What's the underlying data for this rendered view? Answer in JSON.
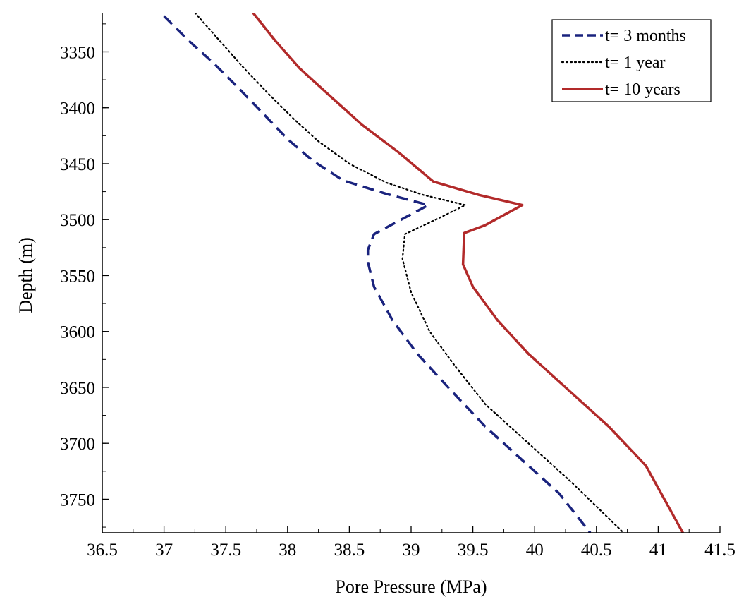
{
  "chart_data": {
    "type": "line",
    "title": "",
    "xlabel": "Pore Pressure (MPa)",
    "ylabel": "Depth (m)",
    "xlim": [
      36.5,
      41.5
    ],
    "ylim": [
      3315,
      3780
    ],
    "y_inverted": true,
    "grid": false,
    "legend_position": "top-right",
    "x_ticks": [
      "36.5",
      "37",
      "37.5",
      "38",
      "38.5",
      "39",
      "39.5",
      "40",
      "40.5",
      "41",
      "41.5"
    ],
    "y_ticks": [
      "3350",
      "3400",
      "3450",
      "3500",
      "3550",
      "3600",
      "3650",
      "3700",
      "3750"
    ],
    "series": [
      {
        "name": "t= 3 months",
        "color": "#1a237e",
        "style": "dashed",
        "points": [
          [
            37.0,
            3318
          ],
          [
            37.2,
            3340
          ],
          [
            37.4,
            3360
          ],
          [
            37.6,
            3382
          ],
          [
            37.8,
            3405
          ],
          [
            38.0,
            3428
          ],
          [
            38.2,
            3447
          ],
          [
            38.45,
            3465
          ],
          [
            38.8,
            3477
          ],
          [
            39.14,
            3487
          ],
          [
            38.7,
            3513
          ],
          [
            38.65,
            3527
          ],
          [
            38.65,
            3538
          ],
          [
            38.7,
            3560
          ],
          [
            38.85,
            3590
          ],
          [
            39.05,
            3620
          ],
          [
            39.3,
            3650
          ],
          [
            39.6,
            3685
          ],
          [
            39.95,
            3720
          ],
          [
            40.2,
            3745
          ],
          [
            40.45,
            3780
          ]
        ]
      },
      {
        "name": "t= 1 year",
        "color": "#000000",
        "style": "dotted",
        "points": [
          [
            37.25,
            3315
          ],
          [
            37.45,
            3340
          ],
          [
            37.65,
            3365
          ],
          [
            37.85,
            3388
          ],
          [
            38.05,
            3410
          ],
          [
            38.25,
            3430
          ],
          [
            38.5,
            3450
          ],
          [
            38.8,
            3467
          ],
          [
            39.1,
            3478
          ],
          [
            39.44,
            3487
          ],
          [
            39.2,
            3500
          ],
          [
            38.95,
            3513
          ],
          [
            38.93,
            3535
          ],
          [
            39.0,
            3565
          ],
          [
            39.15,
            3600
          ],
          [
            39.35,
            3630
          ],
          [
            39.6,
            3665
          ],
          [
            39.95,
            3700
          ],
          [
            40.3,
            3735
          ],
          [
            40.72,
            3780
          ]
        ]
      },
      {
        "name": "t= 10 years",
        "color": "#b22a2a",
        "style": "solid",
        "points": [
          [
            37.72,
            3315
          ],
          [
            37.9,
            3340
          ],
          [
            38.1,
            3365
          ],
          [
            38.35,
            3390
          ],
          [
            38.6,
            3415
          ],
          [
            38.9,
            3440
          ],
          [
            39.18,
            3466
          ],
          [
            39.55,
            3478
          ],
          [
            39.9,
            3487
          ],
          [
            39.6,
            3505
          ],
          [
            39.43,
            3512
          ],
          [
            39.42,
            3540
          ],
          [
            39.5,
            3560
          ],
          [
            39.7,
            3590
          ],
          [
            39.95,
            3620
          ],
          [
            40.25,
            3650
          ],
          [
            40.6,
            3685
          ],
          [
            40.9,
            3720
          ],
          [
            41.2,
            3780
          ]
        ]
      }
    ]
  }
}
